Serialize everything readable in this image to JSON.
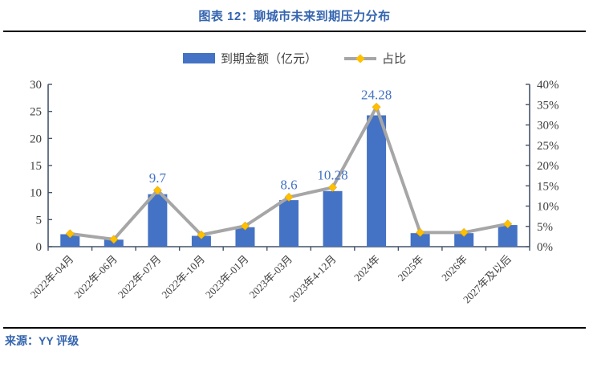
{
  "page": {
    "title": "图表 12：聊城市未来到期压力分布",
    "source": "来源：YY 评级"
  },
  "legend": {
    "bar_label": "到期金额（亿元）",
    "line_label": "占比"
  },
  "colors": {
    "bar": "#4472C4",
    "line": "#A6A6A6",
    "marker": "#FFC000",
    "data_label": "#4472C4",
    "axis": "#44546A",
    "axis_text": "#404040",
    "title": "#3565AF"
  },
  "chart_data": {
    "type": "bar",
    "title": "聊城市未来到期压力分布",
    "categories": [
      "2022年-04月",
      "2022年-06月",
      "2022年-07月",
      "2022年-10月",
      "2023年-01月",
      "2023年-03月",
      "2023年4-12月",
      "2024年",
      "2025年",
      "2026年",
      "2027年及以后"
    ],
    "series": [
      {
        "name": "到期金额（亿元）",
        "type": "bar",
        "axis": "left",
        "values": [
          2.3,
          1.3,
          9.7,
          2.0,
          3.6,
          8.6,
          10.28,
          24.28,
          2.5,
          2.5,
          4.0
        ]
      },
      {
        "name": "占比",
        "type": "line",
        "axis": "right",
        "values": [
          3.2,
          1.8,
          13.9,
          2.9,
          5.1,
          12.2,
          14.6,
          34.4,
          3.5,
          3.5,
          5.6
        ]
      }
    ],
    "data_labels": {
      "2": "9.7",
      "5": "8.6",
      "6": "10.28",
      "7": "24.28"
    },
    "left_axis": {
      "min": 0,
      "max": 30,
      "step": 5,
      "ticks": [
        "0",
        "5",
        "10",
        "15",
        "20",
        "25",
        "30"
      ]
    },
    "right_axis": {
      "min": 0,
      "max": 40,
      "step": 5,
      "ticks": [
        "0%",
        "5%",
        "10%",
        "15%",
        "20%",
        "25%",
        "30%",
        "35%",
        "40%"
      ]
    },
    "legend_position": "top",
    "grid": false
  }
}
